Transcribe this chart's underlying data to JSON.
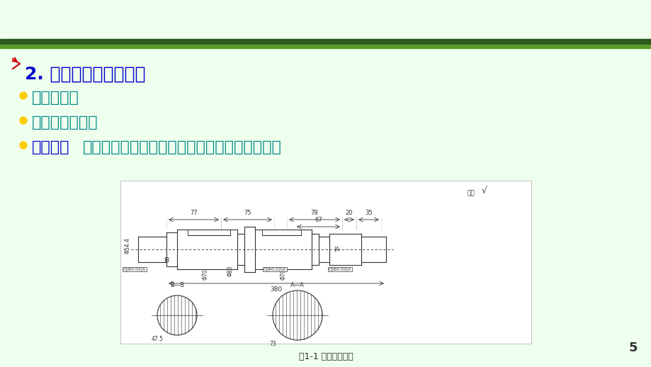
{
  "bg_color": "#eeffee",
  "header_gradient_top": "#2d5a1b",
  "header_gradient_bottom": "#6aaa3a",
  "title_text": "2. 轴类零件的结构特点",
  "title_color": "#0000cc",
  "arrow_color": "#cc0000",
  "bullet_color": "#ffcc00",
  "bullet_items": [
    "回转体零件",
    "长度大于直径；",
    "加工表面为内外圆柱面、圆锥面、螺纹、花键、沟槽等；"
  ],
  "bullet_color_text": "#008888",
  "bold_text_items": [
    "加工表面"
  ],
  "bold_text_color": "#0000cc",
  "page_number": "5",
  "caption_text": "图1-1 阶梯轴零件图",
  "caption_color": "#333333"
}
